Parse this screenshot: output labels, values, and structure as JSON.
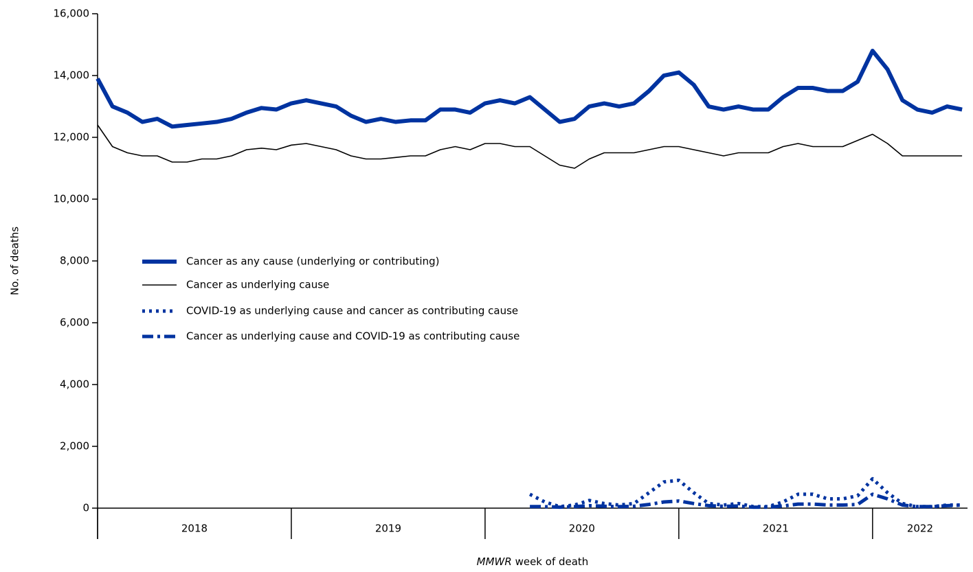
{
  "chart_data": {
    "type": "line",
    "ylabel": "No. of deaths",
    "xlabel": {
      "italic": "MMWR",
      "rest": " week of death"
    },
    "xlim": [
      2018,
      2022.49
    ],
    "xticks": [
      2018,
      2019,
      2020,
      2021,
      2022
    ],
    "ylim": [
      0,
      16000
    ],
    "yticks": [
      0,
      {
        "value": 2000,
        "label": "2,000"
      },
      {
        "value": 4000,
        "label": "4,000"
      },
      {
        "value": 6000,
        "label": "6,000"
      },
      {
        "value": 8000,
        "label": "8,000"
      },
      {
        "value": 10000,
        "label": "10,000"
      },
      {
        "value": 12000,
        "label": "12,000"
      },
      {
        "value": 14000,
        "label": "14,000"
      },
      {
        "value": 16000,
        "label": "16,000"
      }
    ],
    "legend": "left",
    "x": [
      2018,
      2018.077,
      2018.154,
      2018.231,
      2018.308,
      2018.385,
      2018.462,
      2018.538,
      2018.615,
      2018.692,
      2018.769,
      2018.846,
      2018.923,
      2019,
      2019.077,
      2019.154,
      2019.231,
      2019.308,
      2019.385,
      2019.462,
      2019.538,
      2019.615,
      2019.692,
      2019.769,
      2019.846,
      2019.923,
      2020,
      2020.077,
      2020.154,
      2020.231,
      2020.308,
      2020.385,
      2020.462,
      2020.538,
      2020.615,
      2020.692,
      2020.769,
      2020.846,
      2020.923,
      2021,
      2021.077,
      2021.154,
      2021.231,
      2021.308,
      2021.385,
      2021.462,
      2021.538,
      2021.615,
      2021.692,
      2021.769,
      2021.846,
      2021.923,
      2022,
      2022.077,
      2022.154,
      2022.231,
      2022.308,
      2022.385,
      2022.462
    ],
    "series": [
      {
        "name": "Cancer as any cause (underlying or contributing)",
        "color": "#0033a0",
        "width": 6,
        "style": "solid",
        "values": [
          13900,
          13000,
          12800,
          12500,
          12600,
          12350,
          12400,
          12450,
          12500,
          12600,
          12800,
          12950,
          12900,
          13100,
          13200,
          13100,
          13000,
          12700,
          12500,
          12600,
          12500,
          12550,
          12550,
          12900,
          12900,
          12800,
          13100,
          13200,
          13100,
          13300,
          12900,
          12500,
          12600,
          13000,
          13100,
          13000,
          13100,
          13500,
          14000,
          14100,
          13700,
          13000,
          12900,
          13000,
          12900,
          12900,
          13300,
          13600,
          13600,
          13500,
          13500,
          13800,
          14800,
          14200,
          13200,
          12900,
          12800,
          13000,
          12900
        ]
      },
      {
        "name": "Cancer as underlying cause",
        "color": "#000000",
        "width": 1.6,
        "style": "solid",
        "values": [
          12400,
          11700,
          11500,
          11400,
          11400,
          11200,
          11200,
          11300,
          11300,
          11400,
          11600,
          11650,
          11600,
          11750,
          11800,
          11700,
          11600,
          11400,
          11300,
          11300,
          11350,
          11400,
          11400,
          11600,
          11700,
          11600,
          11800,
          11800,
          11700,
          11700,
          11400,
          11100,
          11000,
          11300,
          11500,
          11500,
          11500,
          11600,
          11700,
          11700,
          11600,
          11500,
          11400,
          11500,
          11500,
          11500,
          11700,
          11800,
          11700,
          11700,
          11700,
          11900,
          12100,
          11800,
          11400,
          11400,
          11400,
          11400,
          11400
        ]
      },
      {
        "name": "COVID-19 as underlying cause and cancer as contributing cause",
        "color": "#0033a0",
        "width": 5,
        "style": "dotted",
        "values": [
          null,
          null,
          null,
          null,
          null,
          null,
          null,
          null,
          null,
          null,
          null,
          null,
          null,
          null,
          null,
          null,
          null,
          null,
          null,
          null,
          null,
          null,
          null,
          null,
          null,
          null,
          null,
          null,
          null,
          450,
          200,
          50,
          100,
          250,
          150,
          100,
          150,
          500,
          850,
          900,
          500,
          150,
          100,
          150,
          50,
          50,
          200,
          450,
          450,
          300,
          300,
          400,
          950,
          500,
          150,
          50,
          50,
          100,
          100
        ]
      },
      {
        "name": "Cancer as underlying cause and COVID-19 as contributing cause",
        "color": "#0033a0",
        "width": 5,
        "style": "dashdot",
        "values": [
          null,
          null,
          null,
          null,
          null,
          null,
          null,
          null,
          null,
          null,
          null,
          null,
          null,
          null,
          null,
          null,
          null,
          null,
          null,
          null,
          null,
          null,
          null,
          null,
          null,
          null,
          null,
          null,
          null,
          50,
          50,
          30,
          50,
          80,
          60,
          50,
          60,
          120,
          200,
          230,
          150,
          80,
          60,
          70,
          30,
          30,
          70,
          130,
          130,
          100,
          100,
          120,
          450,
          300,
          100,
          50,
          50,
          80,
          100
        ]
      }
    ]
  }
}
